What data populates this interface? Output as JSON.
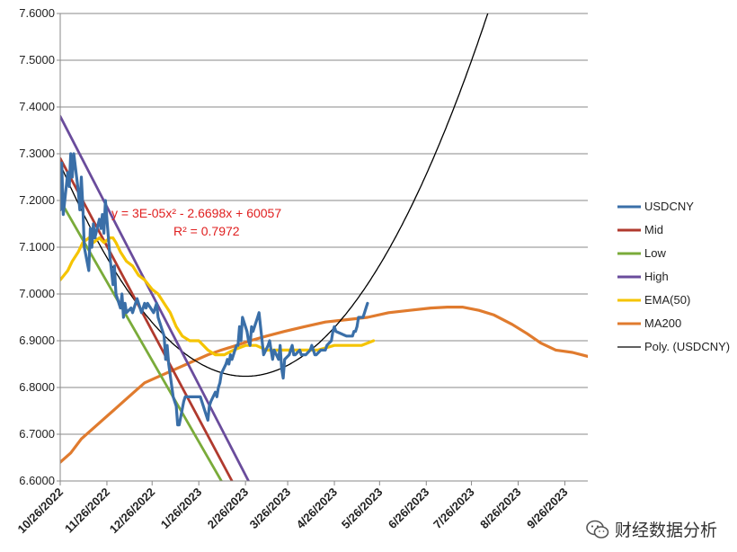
{
  "chart_data": {
    "type": "line",
    "title": "",
    "xlabel": "",
    "ylabel": "",
    "ylim": [
      6.6,
      7.6
    ],
    "y_ticks": [
      "6.6000",
      "6.7000",
      "6.8000",
      "6.9000",
      "7.0000",
      "7.1000",
      "7.2000",
      "7.3000",
      "7.4000",
      "7.5000",
      "7.6000"
    ],
    "x_ticks": [
      "10/26/2022",
      "11/26/2022",
      "12/26/2022",
      "1/26/2023",
      "2/26/2023",
      "3/26/2023",
      "4/26/2023",
      "5/26/2023",
      "6/26/2023",
      "7/26/2023",
      "8/26/2023",
      "9/26/2023"
    ],
    "grid": "horizontal",
    "legend_position": "right",
    "annotation": {
      "equation": "y = 3E-05x² - 2.6698x + 60057",
      "r2": "R² = 0.7972"
    },
    "series": [
      {
        "name": "USDCNY",
        "color": "#3a6fa8",
        "points": [
          [
            "10/26/2022",
            7.18
          ],
          [
            "10/27/2022",
            7.28
          ],
          [
            "10/28/2022",
            7.17
          ],
          [
            "10/31/2022",
            7.26
          ],
          [
            "11/1/2022",
            7.23
          ],
          [
            "11/2/2022",
            7.3
          ],
          [
            "11/3/2022",
            7.25
          ],
          [
            "11/4/2022",
            7.3
          ],
          [
            "11/7/2022",
            7.22
          ],
          [
            "11/8/2022",
            7.18
          ],
          [
            "11/9/2022",
            7.25
          ],
          [
            "11/10/2022",
            7.19
          ],
          [
            "11/11/2022",
            7.1
          ],
          [
            "11/14/2022",
            7.05
          ],
          [
            "11/15/2022",
            7.14
          ],
          [
            "11/16/2022",
            7.1
          ],
          [
            "11/17/2022",
            7.15
          ],
          [
            "11/18/2022",
            7.12
          ],
          [
            "11/21/2022",
            7.16
          ],
          [
            "11/22/2022",
            7.14
          ],
          [
            "11/23/2022",
            7.17
          ],
          [
            "11/24/2022",
            7.13
          ],
          [
            "11/25/2022",
            7.2
          ],
          [
            "11/28/2022",
            7.08
          ],
          [
            "11/29/2022",
            7.05
          ],
          [
            "11/30/2022",
            7.02
          ],
          [
            "12/1/2022",
            7.06
          ],
          [
            "12/2/2022",
            7.0
          ],
          [
            "12/5/2022",
            6.97
          ],
          [
            "12/6/2022",
            7.0
          ],
          [
            "12/7/2022",
            6.95
          ],
          [
            "12/8/2022",
            6.98
          ],
          [
            "12/9/2022",
            6.96
          ],
          [
            "12/12/2022",
            6.97
          ],
          [
            "12/13/2022",
            6.96
          ],
          [
            "12/14/2022",
            6.97
          ],
          [
            "12/15/2022",
            6.98
          ],
          [
            "12/16/2022",
            6.99
          ],
          [
            "12/19/2022",
            6.96
          ],
          [
            "12/20/2022",
            6.97
          ],
          [
            "12/21/2022",
            6.98
          ],
          [
            "12/22/2022",
            6.97
          ],
          [
            "12/23/2022",
            6.98
          ],
          [
            "12/27/2022",
            6.96
          ],
          [
            "12/28/2022",
            6.97
          ],
          [
            "12/29/2022",
            6.98
          ],
          [
            "12/30/2022",
            6.95
          ],
          [
            "1/3/2023",
            6.91
          ],
          [
            "1/4/2023",
            6.86
          ],
          [
            "1/5/2023",
            6.89
          ],
          [
            "1/6/2023",
            6.85
          ],
          [
            "1/9/2023",
            6.78
          ],
          [
            "1/10/2023",
            6.77
          ],
          [
            "1/11/2023",
            6.76
          ],
          [
            "1/12/2023",
            6.72
          ],
          [
            "1/13/2023",
            6.72
          ],
          [
            "1/16/2023",
            6.77
          ],
          [
            "1/17/2023",
            6.78
          ],
          [
            "1/26/2023",
            6.78
          ],
          [
            "1/27/2023",
            6.78
          ],
          [
            "1/30/2023",
            6.75
          ],
          [
            "1/31/2023",
            6.74
          ],
          [
            "2/1/2023",
            6.73
          ],
          [
            "2/2/2023",
            6.76
          ],
          [
            "2/3/2023",
            6.77
          ],
          [
            "2/6/2023",
            6.79
          ],
          [
            "2/7/2023",
            6.78
          ],
          [
            "2/8/2023",
            6.8
          ],
          [
            "2/9/2023",
            6.81
          ],
          [
            "2/10/2023",
            6.83
          ],
          [
            "2/13/2023",
            6.85
          ],
          [
            "2/14/2023",
            6.86
          ],
          [
            "2/15/2023",
            6.85
          ],
          [
            "2/16/2023",
            6.87
          ],
          [
            "2/17/2023",
            6.86
          ],
          [
            "2/20/2023",
            6.89
          ],
          [
            "2/21/2023",
            6.89
          ],
          [
            "2/22/2023",
            6.93
          ],
          [
            "2/23/2023",
            6.9
          ],
          [
            "2/24/2023",
            6.95
          ],
          [
            "2/27/2023",
            6.92
          ],
          [
            "2/28/2023",
            6.9
          ],
          [
            "3/1/2023",
            6.89
          ],
          [
            "3/2/2023",
            6.93
          ],
          [
            "3/3/2023",
            6.92
          ],
          [
            "3/6/2023",
            6.95
          ],
          [
            "3/7/2023",
            6.96
          ],
          [
            "3/8/2023",
            6.93
          ],
          [
            "3/9/2023",
            6.9
          ],
          [
            "3/10/2023",
            6.87
          ],
          [
            "3/13/2023",
            6.89
          ],
          [
            "3/14/2023",
            6.9
          ],
          [
            "3/15/2023",
            6.88
          ],
          [
            "3/16/2023",
            6.86
          ],
          [
            "3/17/2023",
            6.88
          ],
          [
            "3/20/2023",
            6.86
          ],
          [
            "3/21/2023",
            6.89
          ],
          [
            "3/22/2023",
            6.84
          ],
          [
            "3/23/2023",
            6.82
          ],
          [
            "3/24/2023",
            6.86
          ],
          [
            "3/27/2023",
            6.87
          ],
          [
            "3/28/2023",
            6.88
          ],
          [
            "3/29/2023",
            6.89
          ],
          [
            "3/30/2023",
            6.87
          ],
          [
            "3/31/2023",
            6.87
          ],
          [
            "4/3/2023",
            6.88
          ],
          [
            "4/4/2023",
            6.87
          ],
          [
            "4/6/2023",
            6.87
          ],
          [
            "4/7/2023",
            6.87
          ],
          [
            "4/10/2023",
            6.88
          ],
          [
            "4/11/2023",
            6.89
          ],
          [
            "4/12/2023",
            6.88
          ],
          [
            "4/13/2023",
            6.87
          ],
          [
            "4/14/2023",
            6.87
          ],
          [
            "4/17/2023",
            6.88
          ],
          [
            "4/18/2023",
            6.88
          ],
          [
            "4/19/2023",
            6.88
          ],
          [
            "4/20/2023",
            6.88
          ],
          [
            "4/21/2023",
            6.89
          ],
          [
            "4/24/2023",
            6.9
          ],
          [
            "4/25/2023",
            6.92
          ],
          [
            "4/26/2023",
            6.93
          ],
          [
            "4/27/2023",
            6.92
          ],
          [
            "5/4/2023",
            6.91
          ],
          [
            "5/5/2023",
            6.91
          ],
          [
            "5/8/2023",
            6.91
          ],
          [
            "5/9/2023",
            6.92
          ],
          [
            "5/10/2023",
            6.92
          ],
          [
            "5/11/2023",
            6.93
          ],
          [
            "5/12/2023",
            6.95
          ],
          [
            "5/15/2023",
            6.95
          ],
          [
            "5/16/2023",
            6.96
          ],
          [
            "5/17/2023",
            6.97
          ],
          [
            "5/18/2023",
            6.98
          ]
        ]
      },
      {
        "name": "Mid",
        "color": "#b03a2e",
        "points": [
          [
            "10/26/2022",
            7.29
          ],
          [
            "2/17/2023",
            6.6
          ]
        ]
      },
      {
        "name": "Low",
        "color": "#7aab3a",
        "points": [
          [
            "10/26/2022",
            7.2
          ],
          [
            "2/10/2023",
            6.6
          ]
        ]
      },
      {
        "name": "High",
        "color": "#6a4c9c",
        "points": [
          [
            "10/26/2022",
            7.38
          ],
          [
            "2/28/2023",
            6.6
          ]
        ]
      },
      {
        "name": "EMA(50)",
        "color": "#f5c400",
        "points": [
          [
            "10/26/2022",
            7.03
          ],
          [
            "10/31/2022",
            7.05
          ],
          [
            "11/3/2022",
            7.07
          ],
          [
            "11/7/2022",
            7.09
          ],
          [
            "11/10/2022",
            7.11
          ],
          [
            "11/14/2022",
            7.12
          ],
          [
            "11/17/2022",
            7.11
          ],
          [
            "11/21/2022",
            7.12
          ],
          [
            "11/24/2022",
            7.11
          ],
          [
            "11/28/2022",
            7.12
          ],
          [
            "11/30/2022",
            7.12
          ],
          [
            "12/2/2022",
            7.11
          ],
          [
            "12/5/2022",
            7.09
          ],
          [
            "12/9/2022",
            7.07
          ],
          [
            "12/13/2022",
            7.06
          ],
          [
            "12/17/2022",
            7.04
          ],
          [
            "12/21/2022",
            7.03
          ],
          [
            "12/26/2022",
            7.01
          ],
          [
            "12/30/2022",
            7.0
          ],
          [
            "1/3/2023",
            6.98
          ],
          [
            "1/7/2023",
            6.96
          ],
          [
            "1/11/2023",
            6.93
          ],
          [
            "1/15/2023",
            6.91
          ],
          [
            "1/20/2023",
            6.9
          ],
          [
            "1/26/2023",
            6.9
          ],
          [
            "2/1/2023",
            6.88
          ],
          [
            "2/6/2023",
            6.87
          ],
          [
            "2/12/2023",
            6.87
          ],
          [
            "2/18/2023",
            6.88
          ],
          [
            "2/26/2023",
            6.89
          ],
          [
            "3/5/2023",
            6.89
          ],
          [
            "3/12/2023",
            6.88
          ],
          [
            "3/20/2023",
            6.88
          ],
          [
            "3/28/2023",
            6.88
          ],
          [
            "4/5/2023",
            6.88
          ],
          [
            "4/15/2023",
            6.88
          ],
          [
            "4/26/2023",
            6.89
          ],
          [
            "5/6/2023",
            6.89
          ],
          [
            "5/14/2023",
            6.89
          ],
          [
            "5/22/2023",
            6.9
          ]
        ]
      },
      {
        "name": "MA200",
        "color": "#e07b2e",
        "points": [
          [
            "10/26/2022",
            6.64
          ],
          [
            "11/2/2022",
            6.66
          ],
          [
            "11/9/2022",
            6.69
          ],
          [
            "11/16/2022",
            6.71
          ],
          [
            "11/23/2022",
            6.73
          ],
          [
            "11/30/2022",
            6.75
          ],
          [
            "12/7/2022",
            6.77
          ],
          [
            "12/14/2022",
            6.79
          ],
          [
            "12/21/2022",
            6.81
          ],
          [
            "12/28/2022",
            6.82
          ],
          [
            "1/4/2023",
            6.83
          ],
          [
            "1/11/2023",
            6.84
          ],
          [
            "1/18/2023",
            6.85
          ],
          [
            "1/25/2023",
            6.86
          ],
          [
            "2/1/2023",
            6.87
          ],
          [
            "2/10/2023",
            6.88
          ],
          [
            "2/20/2023",
            6.89
          ],
          [
            "3/1/2023",
            6.9
          ],
          [
            "3/12/2023",
            6.91
          ],
          [
            "3/24/2023",
            6.92
          ],
          [
            "4/6/2023",
            6.93
          ],
          [
            "4/20/2023",
            6.94
          ],
          [
            "5/4/2023",
            6.945
          ],
          [
            "5/18/2023",
            6.95
          ],
          [
            "6/1/2023",
            6.96
          ],
          [
            "6/15/2023",
            6.965
          ],
          [
            "6/29/2023",
            6.97
          ],
          [
            "7/10/2023",
            6.972
          ],
          [
            "7/20/2023",
            6.972
          ],
          [
            "7/31/2023",
            6.965
          ],
          [
            "8/10/2023",
            6.955
          ],
          [
            "8/22/2023",
            6.935
          ],
          [
            "9/1/2023",
            6.915
          ],
          [
            "9/10/2023",
            6.895
          ],
          [
            "9/20/2023",
            6.88
          ],
          [
            "10/1/2023",
            6.875
          ],
          [
            "10/13/2023",
            6.865
          ]
        ]
      },
      {
        "name": "Poly. (USDCNY)",
        "color": "#000000",
        "type": "polynomial",
        "vertex_date": "2/26/2023",
        "vertex_value": 6.824,
        "curvature": 3e-05,
        "x_start": "10/26/2022",
        "x_end": "8/18/2023"
      }
    ]
  },
  "watermark": {
    "text": "财经数据分析",
    "icon": "wechat-icon"
  }
}
